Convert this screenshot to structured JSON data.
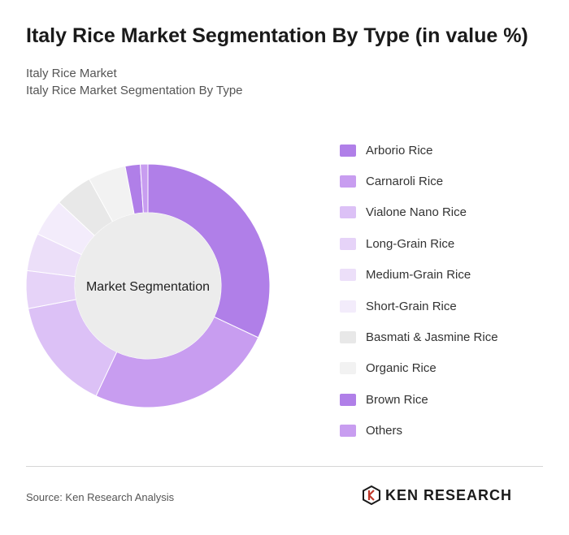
{
  "title": "Italy Rice Market Segmentation By Type (in value %)",
  "subtitles": [
    "Italy Rice Market",
    "Italy Rice Market Segmentation By Type"
  ],
  "center_label": "Market Segmentation",
  "source": "Source: Ken Research Analysis",
  "brand": {
    "name": "KEN RESEARCH",
    "icon": "ken-research-logo-icon"
  },
  "chart_data": {
    "type": "pie",
    "donut": true,
    "categories": [
      "Arborio Rice",
      "Carnaroli Rice",
      "Vialone Nano Rice",
      "Long-Grain Rice",
      "Medium-Grain Rice",
      "Short-Grain Rice",
      "Basmati & Jasmine Rice",
      "Organic Rice",
      "Brown Rice",
      "Others"
    ],
    "values": [
      32,
      25,
      15,
      5,
      5,
      5,
      5,
      5,
      2,
      1
    ],
    "colors": [
      "#b07fe8",
      "#c89df0",
      "#dcc1f6",
      "#e6d3f8",
      "#ecdff9",
      "#f3ecfb",
      "#e8e8e8",
      "#f2f2f2",
      "#b07fe8",
      "#c89df0"
    ],
    "legend_position": "right"
  }
}
